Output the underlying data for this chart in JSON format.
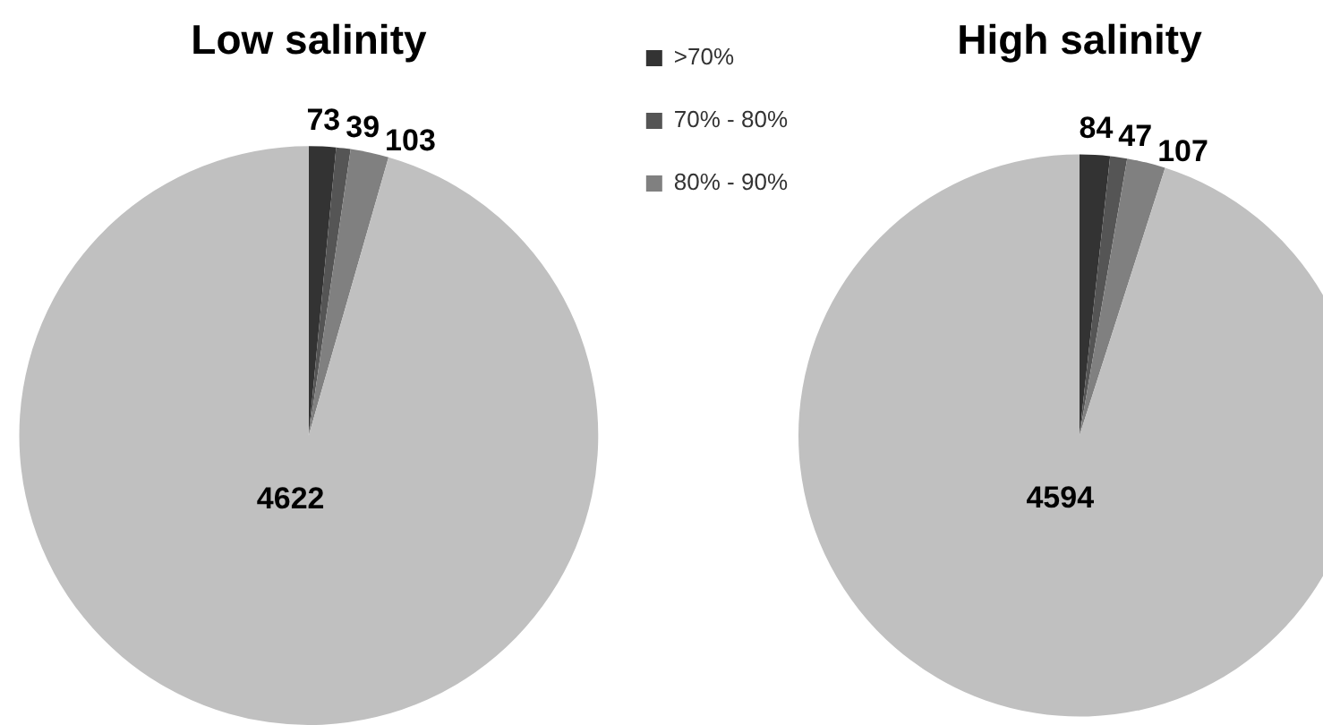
{
  "chart_data": [
    {
      "type": "pie",
      "title": "Low salinity",
      "categories": [
        ">70%",
        "70% - 80%",
        "80% - 90%",
        null
      ],
      "values": [
        73,
        39,
        103,
        4622
      ],
      "colors": [
        "#333333",
        "#555555",
        "#808080",
        "#c0c0c0"
      ],
      "data_labels": true,
      "legend": "right"
    },
    {
      "type": "pie",
      "title": "High salinity",
      "categories": [
        null,
        null,
        null,
        null
      ],
      "values": [
        84,
        47,
        107,
        4594
      ],
      "colors": [
        "#333333",
        "#555555",
        "#808080",
        "#c0c0c0"
      ],
      "data_labels": true,
      "legend": false
    }
  ]
}
